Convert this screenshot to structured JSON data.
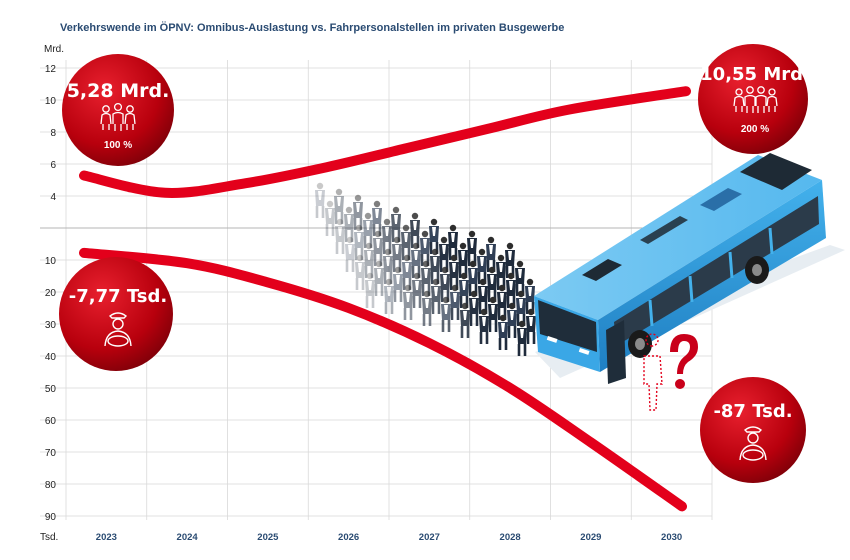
{
  "chart_data": {
    "type": "line",
    "title": "Verkehrswende im ÖPNV: Omnibus-Auslastung vs. Fahrpersonalstellen im privaten Busgewerbe",
    "categories": [
      "2023",
      "2024",
      "2025",
      "2026",
      "2027",
      "2028",
      "2029",
      "2030"
    ],
    "upper_axis": {
      "unit": "Mrd.",
      "ticks": [
        "4",
        "6",
        "8",
        "10",
        "12"
      ],
      "range": [
        2,
        12
      ]
    },
    "lower_axis": {
      "unit": "Tsd.",
      "ticks": [
        "10",
        "20",
        "30",
        "40",
        "50",
        "60",
        "70",
        "80",
        "90"
      ],
      "range": [
        0,
        90
      ],
      "inverted": true
    },
    "series": [
      {
        "axis": "upper",
        "values": [
          5.28,
          4.2,
          4.8,
          5.8,
          7.0,
          8.2,
          9.4,
          10.55
        ]
      },
      {
        "axis": "lower",
        "values": [
          7.77,
          11,
          17,
          25,
          36,
          50,
          67,
          87
        ]
      }
    ],
    "colors": {
      "line": "#e3001b",
      "bubble": "#b8000d",
      "bus": "#2f9ee0",
      "title": "#2a4b72",
      "grid": "#d9d9d9"
    }
  },
  "callouts": [
    {
      "value": "5,28 Mrd.",
      "pct": "100 %",
      "icon": "people-icon"
    },
    {
      "value": "10,55 Mrd.",
      "pct": "200 %",
      "icon": "people-icon"
    },
    {
      "value": "-7,77 Tsd.",
      "icon": "bus-driver-icon"
    },
    {
      "value": "-87 Tsd.",
      "icon": "bus-driver-icon"
    }
  ]
}
